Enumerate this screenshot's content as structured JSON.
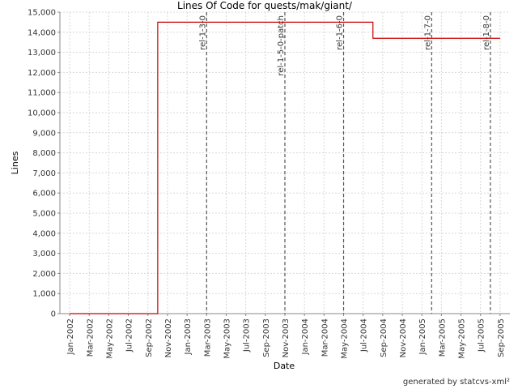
{
  "chart_data": {
    "type": "line",
    "title": "Lines Of Code for quests/mak/giant/",
    "xlabel": "Date",
    "ylabel": "Lines",
    "footer": "generated by statcvs-xml²",
    "step": "post",
    "grid": true,
    "xlim": [
      "2001-12",
      "2005-10"
    ],
    "xticks": [
      {
        "value": "2002-01",
        "label": "Jan-2002"
      },
      {
        "value": "2002-03",
        "label": "Mar-2002"
      },
      {
        "value": "2002-05",
        "label": "May-2002"
      },
      {
        "value": "2002-07",
        "label": "Jul-2002"
      },
      {
        "value": "2002-09",
        "label": "Sep-2002"
      },
      {
        "value": "2002-11",
        "label": "Nov-2002"
      },
      {
        "value": "2003-01",
        "label": "Jan-2003"
      },
      {
        "value": "2003-03",
        "label": "Mar-2003"
      },
      {
        "value": "2003-05",
        "label": "May-2003"
      },
      {
        "value": "2003-07",
        "label": "Jul-2003"
      },
      {
        "value": "2003-09",
        "label": "Sep-2003"
      },
      {
        "value": "2003-11",
        "label": "Nov-2003"
      },
      {
        "value": "2004-01",
        "label": "Jan-2004"
      },
      {
        "value": "2004-03",
        "label": "Mar-2004"
      },
      {
        "value": "2004-05",
        "label": "May-2004"
      },
      {
        "value": "2004-07",
        "label": "Jul-2004"
      },
      {
        "value": "2004-09",
        "label": "Sep-2004"
      },
      {
        "value": "2004-11",
        "label": "Nov-2004"
      },
      {
        "value": "2005-01",
        "label": "Jan-2005"
      },
      {
        "value": "2005-03",
        "label": "Mar-2005"
      },
      {
        "value": "2005-05",
        "label": "May-2005"
      },
      {
        "value": "2005-07",
        "label": "Jul-2005"
      },
      {
        "value": "2005-09",
        "label": "Sep-2005"
      }
    ],
    "ylim": [
      0,
      15000
    ],
    "yticks": [
      0,
      {
        "value": 1000,
        "label": "1,000"
      },
      {
        "value": 2000,
        "label": "2,000"
      },
      {
        "value": 3000,
        "label": "3,000"
      },
      {
        "value": 4000,
        "label": "4,000"
      },
      {
        "value": 5000,
        "label": "5,000"
      },
      {
        "value": 6000,
        "label": "6,000"
      },
      {
        "value": 7000,
        "label": "7,000"
      },
      {
        "value": 8000,
        "label": "8,000"
      },
      {
        "value": 9000,
        "label": "9,000"
      },
      {
        "value": 10000,
        "label": "10,000"
      },
      {
        "value": 11000,
        "label": "11,000"
      },
      {
        "value": 12000,
        "label": "12,000"
      },
      {
        "value": 13000,
        "label": "13,000"
      },
      {
        "value": 14000,
        "label": "14,000"
      },
      {
        "value": 15000,
        "label": "15,000"
      }
    ],
    "series": [
      {
        "color": "#cc0000",
        "x": [
          "2002-01",
          "2002-10",
          "2004-08",
          "2005-09"
        ],
        "values": [
          0,
          14500,
          13700,
          13700
        ]
      }
    ],
    "markers": [
      {
        "label": "rel-1-3-0",
        "x": "2003-03"
      },
      {
        "label": "rel-1-5-0-patch",
        "x": "2003-11"
      },
      {
        "label": "rel-1-6-0",
        "x": "2004-05"
      },
      {
        "label": "rel-1-7-0",
        "x": "2005-02"
      },
      {
        "label": "rel-1-8-0",
        "x": "2005-08"
      }
    ]
  }
}
